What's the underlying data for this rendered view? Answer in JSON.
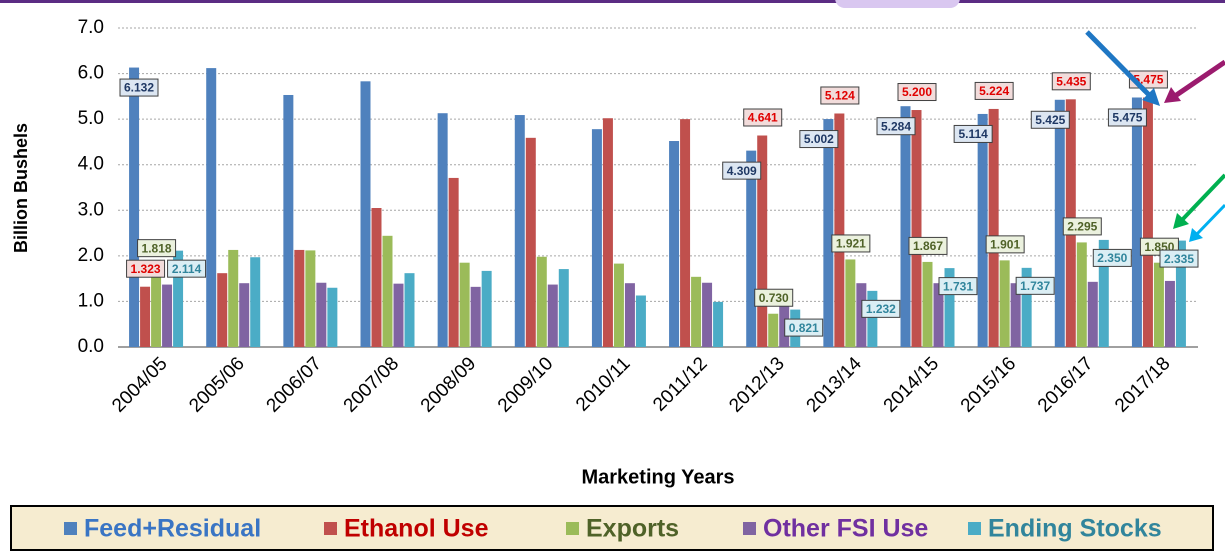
{
  "chart_data": {
    "type": "bar",
    "x_label": "Marketing Years",
    "y_label": "Billion Bushels",
    "categories": [
      "2004/05",
      "2005/06",
      "2006/07",
      "2007/08",
      "2008/09",
      "2009/10",
      "2010/11",
      "2011/12",
      "2012/13",
      "2013/14",
      "2014/15",
      "2015/16",
      "2016/17",
      "2017/18"
    ],
    "ylim": [
      0,
      7
    ],
    "yticks": [
      {
        "value": 0,
        "label": "0.0"
      },
      {
        "value": 1,
        "label": "1.0"
      },
      {
        "value": 2,
        "label": "2.0"
      },
      {
        "value": 3,
        "label": "3.0"
      },
      {
        "value": 4,
        "label": "4.0"
      },
      {
        "value": 5,
        "label": "5.0"
      },
      {
        "value": 6,
        "label": "6.0"
      },
      {
        "value": 7,
        "label": "7.0"
      }
    ],
    "grid": true,
    "legend": "bottom",
    "series": [
      {
        "name": "Feed+Residual",
        "color": "#4f81bd",
        "label_color": "#1f3864",
        "label_fill": "#dce6f2",
        "legend_color": "#3a75c4",
        "values": [
          6.132,
          6.12,
          5.53,
          5.83,
          5.13,
          5.09,
          4.78,
          4.52,
          4.309,
          5.002,
          5.284,
          5.114,
          5.425,
          5.475
        ],
        "value_labels": [
          "6.132",
          null,
          null,
          null,
          null,
          null,
          null,
          null,
          "4.309",
          "5.002",
          "5.284",
          "5.114",
          "5.425",
          "5.475"
        ]
      },
      {
        "name": "Ethanol Use",
        "color": "#c0504d",
        "label_color": "#e00000",
        "label_fill": "#f2dcdb",
        "legend_color": "#c00000",
        "values": [
          1.323,
          1.62,
          2.13,
          3.05,
          3.71,
          4.59,
          5.02,
          5.0,
          4.641,
          5.124,
          5.2,
          5.224,
          5.435,
          5.475
        ],
        "value_labels": [
          "1.323",
          null,
          null,
          null,
          null,
          null,
          null,
          null,
          "4.641",
          "5.124",
          "5.200",
          "5.224",
          "5.435",
          "5.475"
        ]
      },
      {
        "name": "Exports",
        "color": "#9bbb59",
        "label_color": "#4f6228",
        "label_fill": "#ebf1de",
        "legend_color": "#4f6228",
        "values": [
          1.818,
          2.13,
          2.12,
          2.44,
          1.85,
          1.98,
          1.83,
          1.54,
          0.73,
          1.921,
          1.867,
          1.901,
          2.295,
          1.85
        ],
        "value_labels": [
          "1.818",
          null,
          null,
          null,
          null,
          null,
          null,
          null,
          "0.730",
          "1.921",
          "1.867",
          "1.901",
          "2.295",
          "1.850"
        ]
      },
      {
        "name": "Other FSI Use",
        "color": "#8064a2",
        "legend_color": "#7030a0",
        "values": [
          1.37,
          1.4,
          1.41,
          1.39,
          1.32,
          1.37,
          1.4,
          1.41,
          0.95,
          1.4,
          1.4,
          1.4,
          1.43,
          1.45
        ]
      },
      {
        "name": "Ending Stocks",
        "color": "#4bacc6",
        "label_color": "#31859c",
        "label_fill": "#dbeef4",
        "legend_color": "#31859c",
        "values": [
          2.114,
          1.97,
          1.3,
          1.62,
          1.67,
          1.71,
          1.13,
          0.99,
          0.821,
          1.232,
          1.731,
          1.737,
          2.35,
          2.335
        ],
        "value_labels": [
          "2.114",
          null,
          null,
          null,
          null,
          null,
          null,
          null,
          "0.821",
          "1.232",
          "1.731",
          "1.737",
          "2.350",
          "2.335"
        ]
      }
    ]
  }
}
